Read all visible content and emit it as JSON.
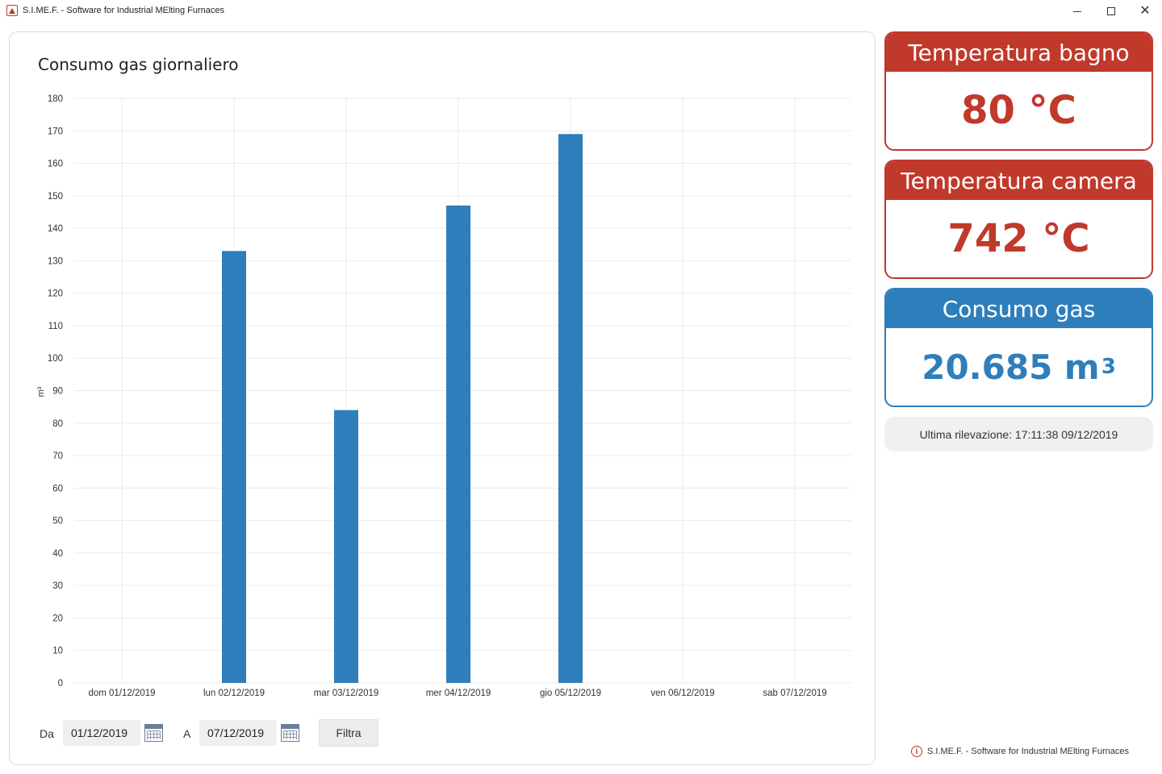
{
  "window": {
    "title": "S.I.ME.F. - Software for Industrial MElting Furnaces"
  },
  "chart_panel": {
    "title": "Consumo gas giornaliero",
    "ylabel": "m³"
  },
  "chart_data": {
    "type": "bar",
    "title": "Consumo gas giornaliero",
    "xlabel": "",
    "ylabel": "m³",
    "ylim": [
      0,
      180
    ],
    "yticks": [
      "0",
      "10",
      "20",
      "30",
      "40",
      "50",
      "60",
      "70",
      "80",
      "90",
      "100",
      "110",
      "120",
      "130",
      "140",
      "150",
      "160",
      "170",
      "180"
    ],
    "categories": [
      "dom 01/12/2019",
      "lun 02/12/2019",
      "mar 03/12/2019",
      "mer 04/12/2019",
      "gio 05/12/2019",
      "ven 06/12/2019",
      "sab 07/12/2019"
    ],
    "values": [
      0,
      133,
      84,
      147,
      169,
      0,
      0
    ],
    "bar_color": "#2e7ebb",
    "grid": true,
    "legend": "none"
  },
  "filter": {
    "from_label": "Da",
    "from_value": "01/12/2019",
    "to_label": "A",
    "to_value": "07/12/2019",
    "button_label": "Filtra"
  },
  "cards": {
    "bath_temp": {
      "title": "Temperatura bagno",
      "value": "80 °C",
      "color": "#c0392b"
    },
    "chamber_temp": {
      "title": "Temperatura camera",
      "value": "742 °C",
      "color": "#c0392b"
    },
    "gas": {
      "title": "Consumo gas",
      "value": "20.685 m",
      "unit_sup": "3",
      "color": "#2e7ebb"
    }
  },
  "last_reading": "Ultima rilevazione: 17:11:38 09/12/2019",
  "footer": "S.I.ME.F. - Software for Industrial MElting Furnaces",
  "icons": {
    "app": "app-logo-icon",
    "calendar": "calendar-icon",
    "info": "info-icon"
  }
}
